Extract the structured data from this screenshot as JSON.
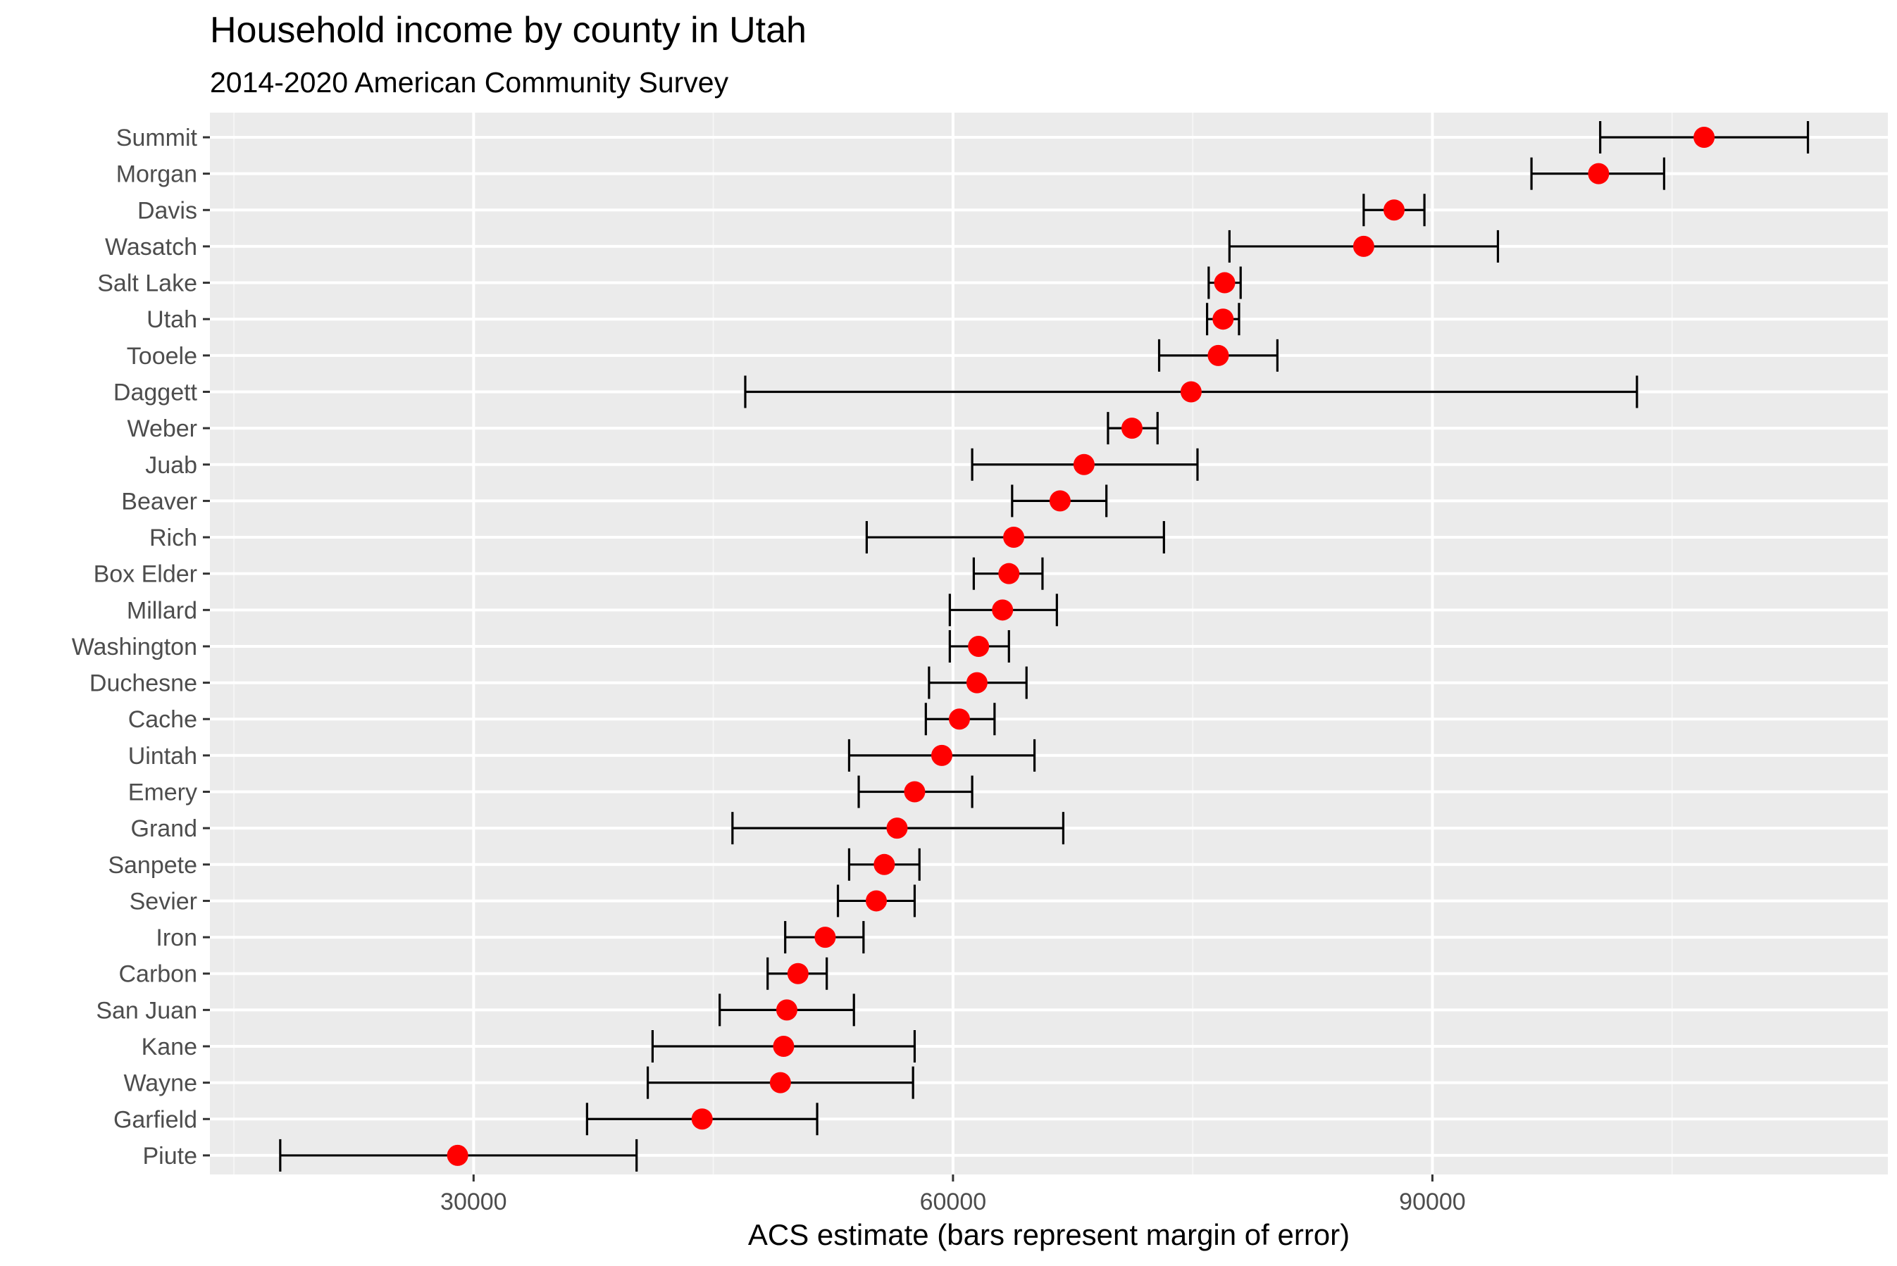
{
  "colors": {
    "panel_background": "#ebebeb",
    "grid_major": "#ffffff",
    "grid_minor": "#f5f5f5",
    "point": "#ff0000",
    "errorbar": "#000000",
    "tick_text": "#4d4d4d",
    "tick_mark": "#333333"
  },
  "chart_data": {
    "type": "scatter",
    "title": "Household income by county in Utah",
    "subtitle": "2014-2020 American Community Survey",
    "xlabel": "ACS estimate (bars represent margin of error)",
    "ylabel": "",
    "xlim": [
      13500,
      118500
    ],
    "x_ticks": [
      30000,
      60000,
      90000
    ],
    "x_tick_labels": [
      "30000",
      "60000",
      "90000"
    ],
    "grid": true,
    "legend": "none",
    "point_color": "#ff0000",
    "errorbar_color": "#000000",
    "counties": [
      {
        "name": "Summit",
        "estimate": 107000,
        "low": 100500,
        "high": 113500
      },
      {
        "name": "Morgan",
        "estimate": 100400,
        "low": 96200,
        "high": 104500
      },
      {
        "name": "Davis",
        "estimate": 87600,
        "low": 85700,
        "high": 89500
      },
      {
        "name": "Wasatch",
        "estimate": 85700,
        "low": 77300,
        "high": 94100
      },
      {
        "name": "Salt Lake",
        "estimate": 77000,
        "low": 76000,
        "high": 78000
      },
      {
        "name": "Utah",
        "estimate": 76900,
        "low": 75900,
        "high": 77900
      },
      {
        "name": "Tooele",
        "estimate": 76600,
        "low": 72900,
        "high": 80300
      },
      {
        "name": "Daggett",
        "estimate": 74900,
        "low": 47000,
        "high": 102800
      },
      {
        "name": "Weber",
        "estimate": 71200,
        "low": 69700,
        "high": 72800
      },
      {
        "name": "Juab",
        "estimate": 68200,
        "low": 61200,
        "high": 75300
      },
      {
        "name": "Beaver",
        "estimate": 66700,
        "low": 63700,
        "high": 69600
      },
      {
        "name": "Rich",
        "estimate": 63800,
        "low": 54600,
        "high": 73200
      },
      {
        "name": "Box Elder",
        "estimate": 63500,
        "low": 61300,
        "high": 65600
      },
      {
        "name": "Millard",
        "estimate": 63100,
        "low": 59800,
        "high": 66500
      },
      {
        "name": "Washington",
        "estimate": 61600,
        "low": 59800,
        "high": 63500
      },
      {
        "name": "Duchesne",
        "estimate": 61500,
        "low": 58500,
        "high": 64600
      },
      {
        "name": "Cache",
        "estimate": 60400,
        "low": 58300,
        "high": 62600
      },
      {
        "name": "Uintah",
        "estimate": 59300,
        "low": 53500,
        "high": 65100
      },
      {
        "name": "Emery",
        "estimate": 57600,
        "low": 54100,
        "high": 61200
      },
      {
        "name": "Grand",
        "estimate": 56500,
        "low": 46200,
        "high": 66900
      },
      {
        "name": "Sanpete",
        "estimate": 55700,
        "low": 53500,
        "high": 57900
      },
      {
        "name": "Sevier",
        "estimate": 55200,
        "low": 52800,
        "high": 57600
      },
      {
        "name": "Iron",
        "estimate": 52000,
        "low": 49500,
        "high": 54400
      },
      {
        "name": "Carbon",
        "estimate": 50300,
        "low": 48400,
        "high": 52100
      },
      {
        "name": "San Juan",
        "estimate": 49600,
        "low": 45400,
        "high": 53800
      },
      {
        "name": "Kane",
        "estimate": 49400,
        "low": 41200,
        "high": 57600
      },
      {
        "name": "Wayne",
        "estimate": 49200,
        "low": 40900,
        "high": 57500
      },
      {
        "name": "Garfield",
        "estimate": 44300,
        "low": 37100,
        "high": 51500
      },
      {
        "name": "Piute",
        "estimate": 29000,
        "low": 17900,
        "high": 40200
      }
    ]
  }
}
